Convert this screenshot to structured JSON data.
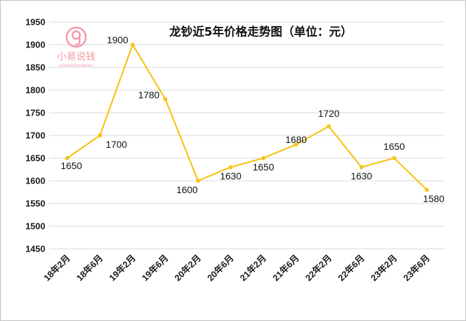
{
  "chart_data": {
    "type": "line",
    "title": "龙钞近5年价格走势图（单位：元）",
    "categories": [
      "18年2月",
      "18年6月",
      "19年2月",
      "19年6月",
      "20年2月",
      "20年6月",
      "21年2月",
      "21年6月",
      "22年2月",
      "22年6月",
      "23年2月",
      "23年6月"
    ],
    "values": [
      1650,
      1700,
      1900,
      1780,
      1600,
      1630,
      1650,
      1680,
      1720,
      1630,
      1650,
      1580
    ],
    "ylim": [
      1450,
      1950
    ],
    "yticks": [
      1450,
      1500,
      1550,
      1600,
      1650,
      1700,
      1750,
      1800,
      1850,
      1900,
      1950
    ],
    "grid": true,
    "line_color": "#f5c518",
    "xlabel": "",
    "ylabel": ""
  },
  "watermark": {
    "text": "小易说钱",
    "subtext": "xiaoyishuoqian",
    "icon": "g-circle-icon",
    "color": "#f29aa6"
  }
}
